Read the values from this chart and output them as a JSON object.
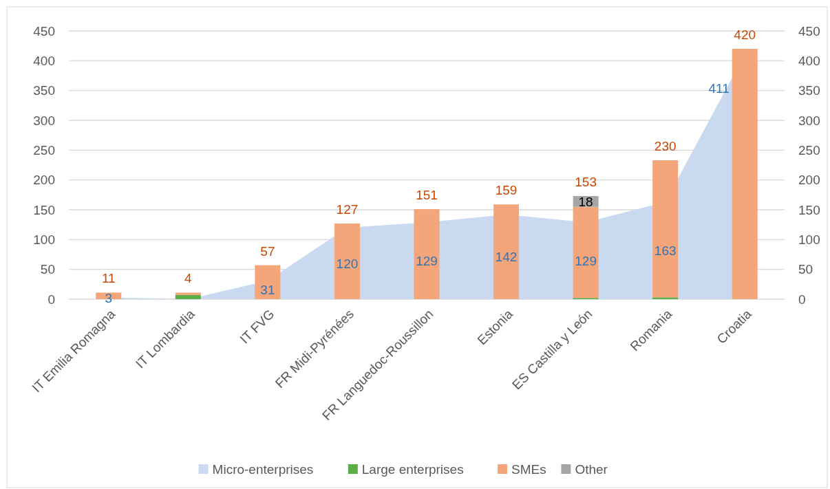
{
  "chart_data": {
    "type": "bar",
    "stacked": true,
    "categories": [
      "IT Emilia Romagna",
      "IT Lombardia",
      "IT FVG",
      "FR Midi-Pyrénées",
      "FR Languedoc-Roussillon",
      "Estonia",
      "ES Castilla y León",
      "Romania",
      "Croatia"
    ],
    "series": [
      {
        "name": "Micro-enterprises",
        "type": "area",
        "axis": "y2",
        "color": "#c9daf0",
        "values": [
          3,
          0,
          31,
          120,
          129,
          142,
          129,
          163,
          411
        ],
        "value_labels": [
          "3",
          null,
          "31",
          "120",
          "129",
          "142",
          "129",
          "163",
          "411"
        ]
      },
      {
        "name": "Large enterprises",
        "color": "#5bae46",
        "values": [
          null,
          7,
          null,
          null,
          null,
          null,
          2,
          3,
          null
        ]
      },
      {
        "name": "SMEs",
        "color": "#f4a57a",
        "values": [
          11,
          4,
          57,
          127,
          151,
          159,
          153,
          230,
          420
        ],
        "value_labels": [
          "11",
          "4",
          "57",
          "127",
          "151",
          "159",
          "153",
          "230",
          "420"
        ]
      },
      {
        "name": "Other",
        "color": "#a5a5a5",
        "values": [
          null,
          null,
          null,
          null,
          null,
          null,
          18,
          null,
          null
        ],
        "value_labels": [
          null,
          null,
          null,
          null,
          null,
          null,
          "18",
          null,
          null
        ]
      }
    ],
    "ylim": [
      0,
      450
    ],
    "yticks": [
      0,
      50,
      100,
      150,
      200,
      250,
      300,
      350,
      400,
      450
    ],
    "y2lim": [
      0,
      450
    ],
    "y2ticks": [
      0,
      50,
      100,
      150,
      200,
      250,
      300,
      350,
      400,
      450
    ],
    "grid": "y",
    "legend": "bottom"
  }
}
